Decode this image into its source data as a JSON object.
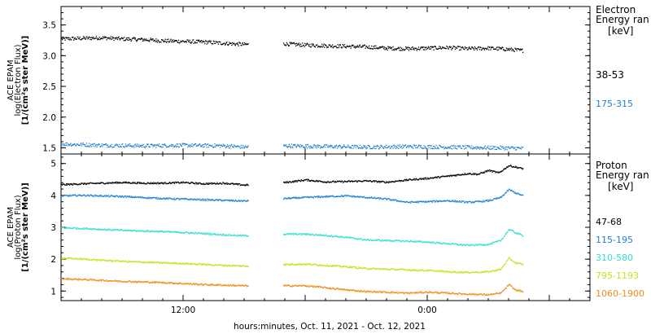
{
  "footer": {
    "xlabel": "hours:minutes, Oct. 11, 2021 - Oct. 12, 2021"
  },
  "x_axis": {
    "unit": "hours relative to 2021-10-11 00:00",
    "range": [
      6,
      32
    ],
    "tick_labels": [
      {
        "at": 12,
        "label": "12:00"
      },
      {
        "at": 24,
        "label": "0:00"
      }
    ],
    "data_gap": [
      15.2,
      16.9
    ],
    "data_end": 28.7
  },
  "chart_data": [
    {
      "type": "scatter",
      "panel": "electron",
      "ylabel": [
        "ACE EPAM",
        "log(Electron Flux)",
        "[1/(cm²s ster MeV)]"
      ],
      "ylim": [
        1.4,
        3.8
      ],
      "yticks": [
        "1.5",
        "2.0",
        "2.5",
        "3.0",
        "3.5"
      ],
      "legend_title": [
        "Electron",
        "Energy ran",
        "[keV]"
      ],
      "series": [
        {
          "name": "38-53",
          "color": "#000000",
          "x": [
            6.0,
            7.0,
            8.0,
            9.0,
            10.0,
            11.0,
            12.0,
            13.0,
            14.0,
            15.0,
            17.0,
            18.0,
            19.0,
            20.0,
            21.0,
            22.0,
            23.0,
            24.0,
            25.0,
            26.0,
            27.0,
            28.0,
            28.7
          ],
          "values": [
            3.28,
            3.29,
            3.3,
            3.28,
            3.27,
            3.25,
            3.24,
            3.23,
            3.21,
            3.19,
            3.2,
            3.18,
            3.17,
            3.16,
            3.15,
            3.13,
            3.12,
            3.13,
            3.14,
            3.12,
            3.13,
            3.11,
            3.09
          ]
        },
        {
          "name": "175-315",
          "color": "#1f7fcf",
          "x": [
            6.0,
            8.0,
            10.0,
            12.0,
            14.0,
            15.0,
            17.0,
            19.0,
            21.0,
            23.0,
            25.0,
            27.0,
            28.7
          ],
          "values": [
            1.57,
            1.55,
            1.54,
            1.55,
            1.54,
            1.52,
            1.54,
            1.53,
            1.52,
            1.53,
            1.52,
            1.51,
            1.5
          ]
        }
      ]
    },
    {
      "type": "scatter",
      "panel": "proton",
      "ylabel": [
        "ACE EPAM",
        "log(Proton Flux)",
        "[1/(cm²s ster MeV)]"
      ],
      "ylim": [
        0.7,
        5.3
      ],
      "yticks": [
        "1",
        "2",
        "3",
        "4",
        "5"
      ],
      "legend_title": [
        "Proton",
        "Energy ran",
        "[keV]"
      ],
      "series": [
        {
          "name": "47-68",
          "color": "#000000",
          "x": [
            6.0,
            7.0,
            8.0,
            9.0,
            10.0,
            11.0,
            12.0,
            13.0,
            14.0,
            15.0,
            17.0,
            18.0,
            19.0,
            20.0,
            21.0,
            22.0,
            23.0,
            24.0,
            25.0,
            26.0,
            26.5,
            27.0,
            27.5,
            28.0,
            28.7
          ],
          "values": [
            4.35,
            4.38,
            4.4,
            4.42,
            4.4,
            4.4,
            4.42,
            4.38,
            4.4,
            4.34,
            4.42,
            4.5,
            4.44,
            4.45,
            4.47,
            4.43,
            4.5,
            4.55,
            4.62,
            4.7,
            4.68,
            4.8,
            4.72,
            4.95,
            4.85
          ]
        },
        {
          "name": "115-195",
          "color": "#1f7fcf",
          "x": [
            6.0,
            7.0,
            8.0,
            9.0,
            10.0,
            11.0,
            12.0,
            13.0,
            14.0,
            15.0,
            17.0,
            18.0,
            19.0,
            20.0,
            21.0,
            22.0,
            23.0,
            24.0,
            25.0,
            26.0,
            26.5,
            27.0,
            27.6,
            28.0,
            28.3,
            28.7
          ],
          "values": [
            4.0,
            4.02,
            4.0,
            3.98,
            3.95,
            3.92,
            3.9,
            3.88,
            3.86,
            3.84,
            3.92,
            3.95,
            3.98,
            4.0,
            3.95,
            3.9,
            3.8,
            3.82,
            3.85,
            3.8,
            3.82,
            3.85,
            3.95,
            4.2,
            4.1,
            4.0
          ]
        },
        {
          "name": "310-580",
          "color": "#33e0d0",
          "x": [
            6.0,
            7.0,
            8.0,
            9.0,
            10.0,
            11.0,
            12.0,
            13.0,
            14.0,
            15.0,
            17.0,
            18.0,
            19.0,
            20.0,
            21.0,
            22.0,
            23.0,
            24.0,
            25.0,
            26.0,
            27.0,
            27.6,
            28.0,
            28.3,
            28.7
          ],
          "values": [
            3.0,
            2.98,
            2.95,
            2.92,
            2.9,
            2.88,
            2.85,
            2.82,
            2.78,
            2.75,
            2.8,
            2.8,
            2.76,
            2.7,
            2.62,
            2.6,
            2.58,
            2.55,
            2.5,
            2.45,
            2.48,
            2.6,
            2.95,
            2.85,
            2.75
          ]
        },
        {
          "name": "795-1193",
          "color": "#c8e020",
          "x": [
            6.0,
            7.0,
            8.0,
            9.0,
            10.0,
            11.0,
            12.0,
            13.0,
            14.0,
            15.0,
            17.0,
            18.0,
            19.0,
            20.0,
            21.0,
            22.0,
            23.0,
            24.0,
            25.0,
            26.0,
            27.0,
            27.6,
            28.0,
            28.3,
            28.7
          ],
          "values": [
            2.05,
            2.02,
            1.98,
            1.95,
            1.92,
            1.9,
            1.88,
            1.85,
            1.82,
            1.8,
            1.85,
            1.86,
            1.82,
            1.78,
            1.72,
            1.7,
            1.68,
            1.66,
            1.62,
            1.6,
            1.62,
            1.7,
            2.05,
            1.9,
            1.85
          ]
        },
        {
          "name": "1060-1900",
          "color": "#f08c1c",
          "x": [
            6.0,
            7.0,
            8.0,
            9.0,
            10.0,
            11.0,
            12.0,
            13.0,
            14.0,
            15.0,
            17.0,
            18.0,
            19.0,
            20.0,
            21.0,
            22.0,
            23.0,
            24.0,
            25.0,
            26.0,
            27.0,
            27.6,
            28.0,
            28.3,
            28.7
          ],
          "values": [
            1.4,
            1.38,
            1.35,
            1.32,
            1.3,
            1.28,
            1.25,
            1.22,
            1.2,
            1.18,
            1.18,
            1.18,
            1.12,
            1.05,
            1.0,
            0.98,
            0.95,
            0.98,
            0.95,
            0.92,
            0.9,
            0.95,
            1.22,
            1.05,
            1.0
          ]
        }
      ]
    }
  ]
}
